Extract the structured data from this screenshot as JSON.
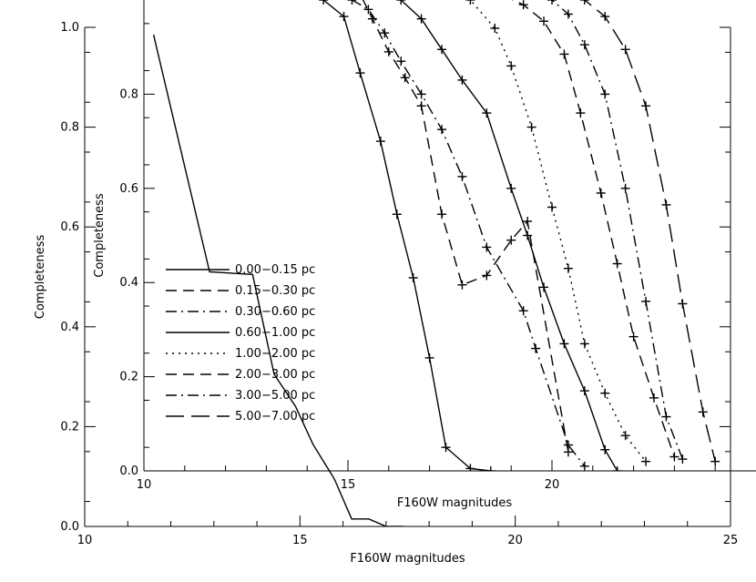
{
  "chart_data": [
    {
      "id": "outer",
      "type": "line",
      "xlabel": "F160W magnitudes",
      "ylabel": "Completeness",
      "xlim": [
        10,
        25
      ],
      "ylim": [
        0.0,
        1.0
      ],
      "xticks": [
        10,
        15,
        20,
        25
      ],
      "xtick_labels": [
        "10",
        "15",
        "20",
        "25"
      ],
      "yticks": [
        0.0,
        0.2,
        0.4,
        0.6,
        0.8,
        1.0
      ],
      "ytick_labels": [
        "0.0",
        "0.2",
        "0.4",
        "0.6",
        "0.8",
        "1.0"
      ],
      "grid": false,
      "series": [
        {
          "style": "solid",
          "x": [
            11.6,
            12.9,
            13.9,
            14.4,
            14.9,
            15.3,
            15.8,
            16.2,
            16.6,
            17.0,
            17.4
          ],
          "y": [
            0.985,
            0.51,
            0.505,
            0.305,
            0.24,
            0.165,
            0.095,
            0.015,
            0.015,
            0.0,
            0.0
          ]
        }
      ]
    },
    {
      "id": "inset",
      "type": "line",
      "xlabel": "F160W magnitudes",
      "ylabel": "Completeness",
      "xlim": [
        10,
        25
      ],
      "ylim": [
        0.0,
        1.0
      ],
      "xticks": [
        10,
        15,
        20
      ],
      "xtick_labels": [
        "10",
        "15",
        "20"
      ],
      "yticks": [
        0.0,
        0.2,
        0.4,
        0.6,
        0.8
      ],
      "ytick_labels": [
        "0.0",
        "0.2",
        "0.4",
        "0.6",
        "0.8"
      ],
      "grid": false,
      "legend_position": "lower-left",
      "series": [
        {
          "name": "0.00−0.15 pc",
          "style": "solid",
          "x": [
            11.6,
            12.9,
            13.9,
            14.4,
            14.9,
            15.3,
            15.8,
            16.2,
            16.6,
            17.0,
            17.4,
            18.0,
            18.5
          ],
          "y": [
            1.02,
            1.08,
            1.05,
            1.0,
            0.965,
            0.845,
            0.7,
            0.545,
            0.41,
            0.24,
            0.05,
            0.005,
            0.0
          ]
        },
        {
          "name": "0.15−0.30 pc",
          "style": "dashed",
          "x": [
            14.7,
            15.2,
            15.6,
            16.0,
            16.4,
            16.8,
            17.3,
            17.8,
            18.4,
            19.0,
            19.4,
            20.4
          ],
          "y": [
            1.02,
            1.03,
            0.96,
            0.89,
            0.835,
            0.775,
            0.545,
            0.395,
            0.415,
            0.49,
            0.53,
            0.04
          ]
        },
        {
          "name": "0.30−0.60 pc",
          "style": "dashdot",
          "x": [
            14.6,
            15.1,
            15.5,
            15.9,
            16.3,
            16.8,
            17.3,
            17.8,
            18.4,
            19.3,
            19.6,
            20.4,
            20.8
          ],
          "y": [
            1.02,
            1.0,
            0.98,
            0.93,
            0.87,
            0.8,
            0.725,
            0.625,
            0.475,
            0.34,
            0.26,
            0.055,
            0.01
          ]
        },
        {
          "name": "0.60−1.00 pc",
          "style": "solid",
          "x": [
            15.8,
            16.3,
            16.8,
            17.3,
            17.8,
            18.4,
            19.0,
            19.4,
            19.8,
            20.3,
            20.8,
            21.3,
            21.6
          ],
          "y": [
            1.01,
            1.0,
            0.96,
            0.895,
            0.83,
            0.76,
            0.6,
            0.5,
            0.39,
            0.27,
            0.17,
            0.045,
            0.0
          ]
        },
        {
          "name": "1.00−2.00 pc",
          "style": "dotted",
          "x": [
            17.2,
            17.6,
            18.0,
            18.6,
            19.0,
            19.5,
            20.0,
            20.4,
            20.8,
            21.3,
            21.8,
            22.3
          ],
          "y": [
            1.02,
            1.02,
            1.0,
            0.94,
            0.86,
            0.73,
            0.56,
            0.43,
            0.27,
            0.165,
            0.075,
            0.02
          ]
        },
        {
          "name": "2.00−3.00 pc",
          "style": "dashed",
          "x": [
            18.4,
            18.8,
            19.3,
            19.8,
            20.3,
            20.7,
            21.2,
            21.6,
            22.0,
            22.5,
            23.0
          ],
          "y": [
            1.02,
            1.01,
            0.99,
            0.955,
            0.885,
            0.76,
            0.59,
            0.44,
            0.285,
            0.155,
            0.03
          ]
        },
        {
          "name": "3.00−5.00 pc",
          "style": "dashdot",
          "x": [
            19.3,
            19.6,
            20.0,
            20.4,
            20.8,
            21.3,
            21.8,
            22.3,
            22.8,
            23.2
          ],
          "y": [
            1.02,
            1.01,
            1.0,
            0.97,
            0.905,
            0.8,
            0.6,
            0.36,
            0.115,
            0.025
          ]
        },
        {
          "name": "5.00−7.00 pc",
          "style": "longdash",
          "x": [
            20.0,
            20.4,
            20.8,
            21.3,
            21.8,
            22.3,
            22.8,
            23.2,
            23.7,
            24.0
          ],
          "y": [
            1.02,
            1.02,
            1.0,
            0.965,
            0.895,
            0.775,
            0.565,
            0.355,
            0.125,
            0.02
          ]
        }
      ]
    }
  ]
}
